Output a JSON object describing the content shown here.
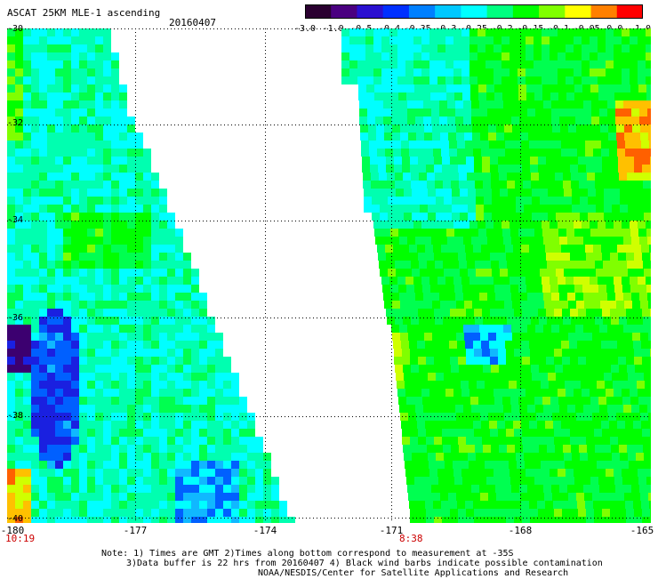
{
  "header": {
    "title": "ASCAT 25KM MLE-1 ascending",
    "date": "20160407"
  },
  "colorbar": {
    "ticks": [
      "-3.0",
      "-1.0",
      "-0.5",
      "-0.4",
      "-0.35",
      "-0.3",
      "-0.25",
      "-0.2",
      "-0.15",
      "-0.1",
      "-0.05",
      "0.0",
      "1.0"
    ],
    "colors": [
      "#2a0030",
      "#4a0080",
      "#2a10d0",
      "#0030ff",
      "#0080ff",
      "#00c8ff",
      "#00ffff",
      "#00ff80",
      "#00ff00",
      "#80ff00",
      "#ffff00",
      "#ff8000",
      "#ff0000"
    ]
  },
  "axes": {
    "lat_labels": [
      "-30",
      "-32",
      "-34",
      "-36",
      "-38",
      "-40"
    ],
    "lon_labels": [
      "-180",
      "-177",
      "-174",
      "-171",
      "-168",
      "-165"
    ]
  },
  "times": {
    "left": "10:19",
    "right": "8:38"
  },
  "notes": {
    "line1": "Note: 1) Times are GMT 2)Times along bottom correspond to measurement at -35S",
    "line2": "3)Data buffer is 22 hrs from 20160407 4) Black wind barbs indicate possible contamination",
    "line3": "NOAA/NESDIS/Center for Satellite Applications and Research"
  }
}
